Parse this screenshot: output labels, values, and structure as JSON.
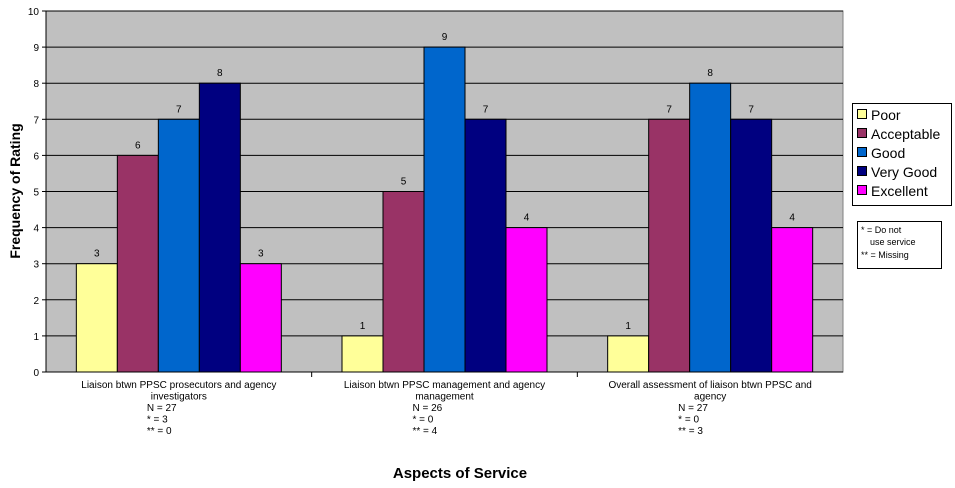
{
  "chart_data": {
    "type": "bar",
    "xlabel": "Aspects of Service",
    "ylabel": "Frequency of Rating",
    "ylim": [
      0,
      10
    ],
    "yticks": [
      "0",
      "1",
      "2",
      "3",
      "4",
      "5",
      "6",
      "7",
      "8",
      "9",
      "10"
    ],
    "grid": true,
    "legend_position": "right",
    "categories": [
      {
        "lines": [
          "Liaison btwn PPSC prosecutors and agency",
          "investigators",
          "N = 27",
          "* = 3",
          "** = 0"
        ]
      },
      {
        "lines": [
          "Liaison btwn PPSC management and agency",
          "management",
          "N = 26",
          "* = 0",
          "** = 4"
        ]
      },
      {
        "lines": [
          "Overall assessment of liaison btwn PPSC and",
          "agency",
          "N = 27",
          "* = 0",
          "** = 3"
        ]
      }
    ],
    "series": [
      {
        "name": "Poor",
        "color": "#ffff99",
        "values": [
          3,
          1,
          1
        ]
      },
      {
        "name": "Acceptable",
        "color": "#993366",
        "values": [
          6,
          5,
          7
        ]
      },
      {
        "name": "Good",
        "color": "#0066cc",
        "values": [
          7,
          9,
          8
        ]
      },
      {
        "name": "Very Good",
        "color": "#000080",
        "values": [
          8,
          7,
          7
        ]
      },
      {
        "name": "Excellent",
        "color": "#ff00ff",
        "values": [
          3,
          4,
          4
        ]
      }
    ],
    "plot_background": "#c0c0c0",
    "notes": [
      "* = Do not",
      "use service",
      "** = Missing"
    ]
  }
}
